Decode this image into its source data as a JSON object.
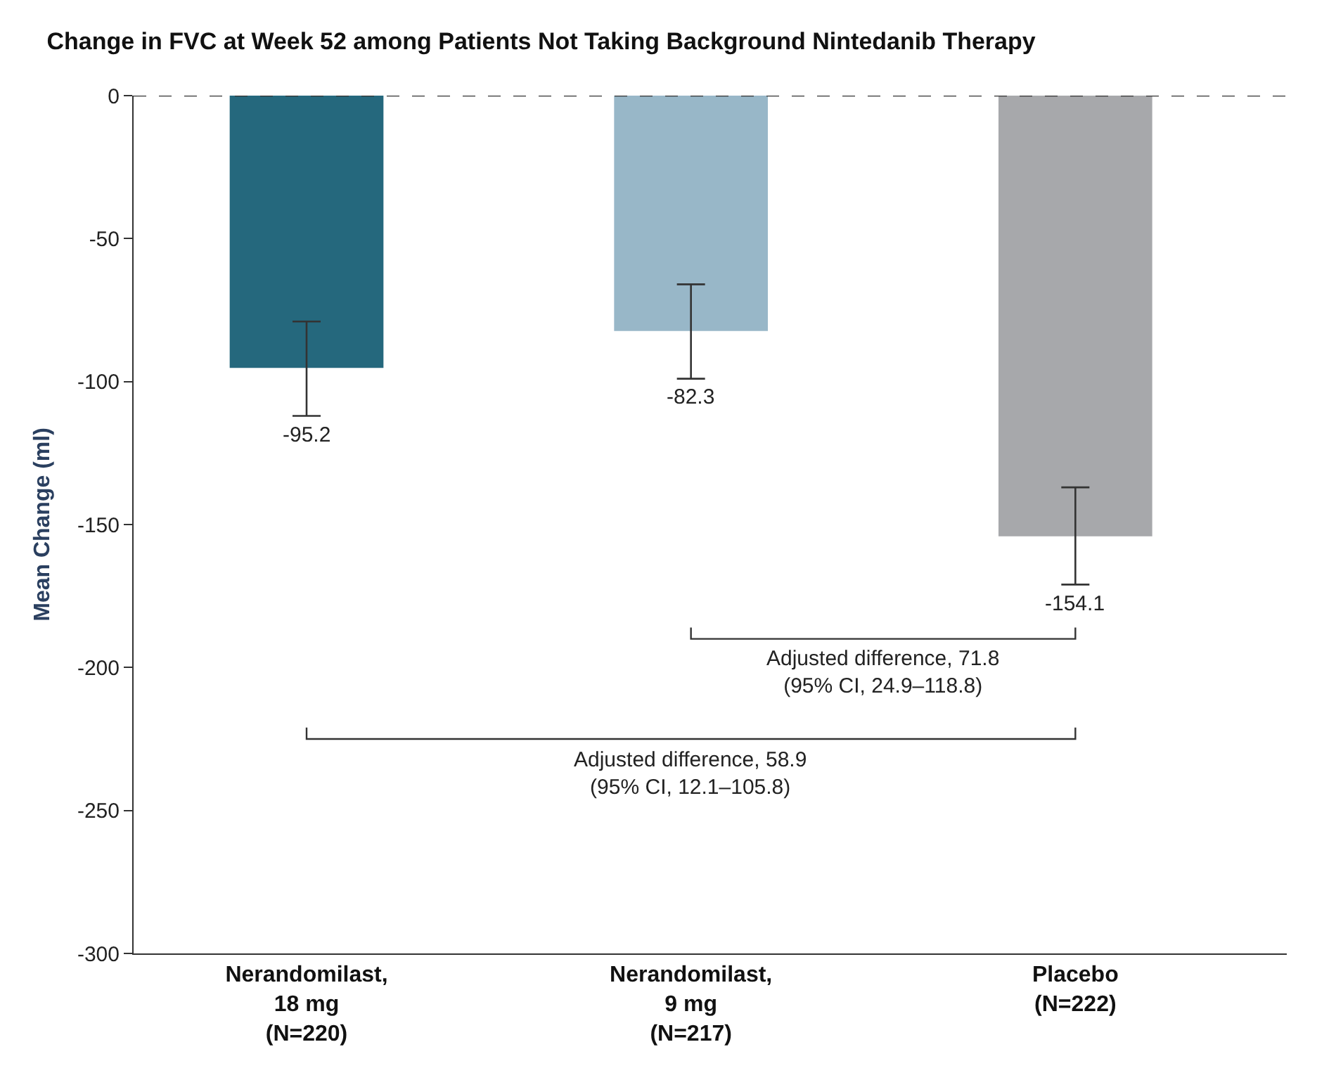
{
  "chart_data": {
    "type": "bar",
    "title": "Change in FVC at Week 52 among Patients Not Taking Background Nintedanib Therapy",
    "ylabel": "Mean Change (ml)",
    "categories": [
      "Nerandomilast,\n18 mg\n(N=220)",
      "Nerandomilast,\n9 mg\n(N=217)",
      "Placebo\n(N=222)"
    ],
    "values": [
      -95.2,
      -82.3,
      -154.1
    ],
    "colors": [
      "#25687d",
      "#98b7c8",
      "#a7a8ab"
    ],
    "errors": [
      [
        -112,
        -79
      ],
      [
        -99,
        -66
      ],
      [
        -171,
        -137
      ]
    ],
    "data_labels": true,
    "ylim": [
      -300,
      0
    ],
    "yticks": [
      -300,
      -250,
      -200,
      -150,
      -100,
      -50,
      0
    ],
    "ref_lines": [
      {
        "axis": "y",
        "value": 0,
        "color": "#333333",
        "line_style": "dashed"
      }
    ],
    "annotations": [
      "Adjusted difference, 71.8\n(95% CI, 24.9–118.8)",
      "Adjusted difference, 58.9\n(95% CI, 12.1–105.8)"
    ],
    "legend": false
  }
}
